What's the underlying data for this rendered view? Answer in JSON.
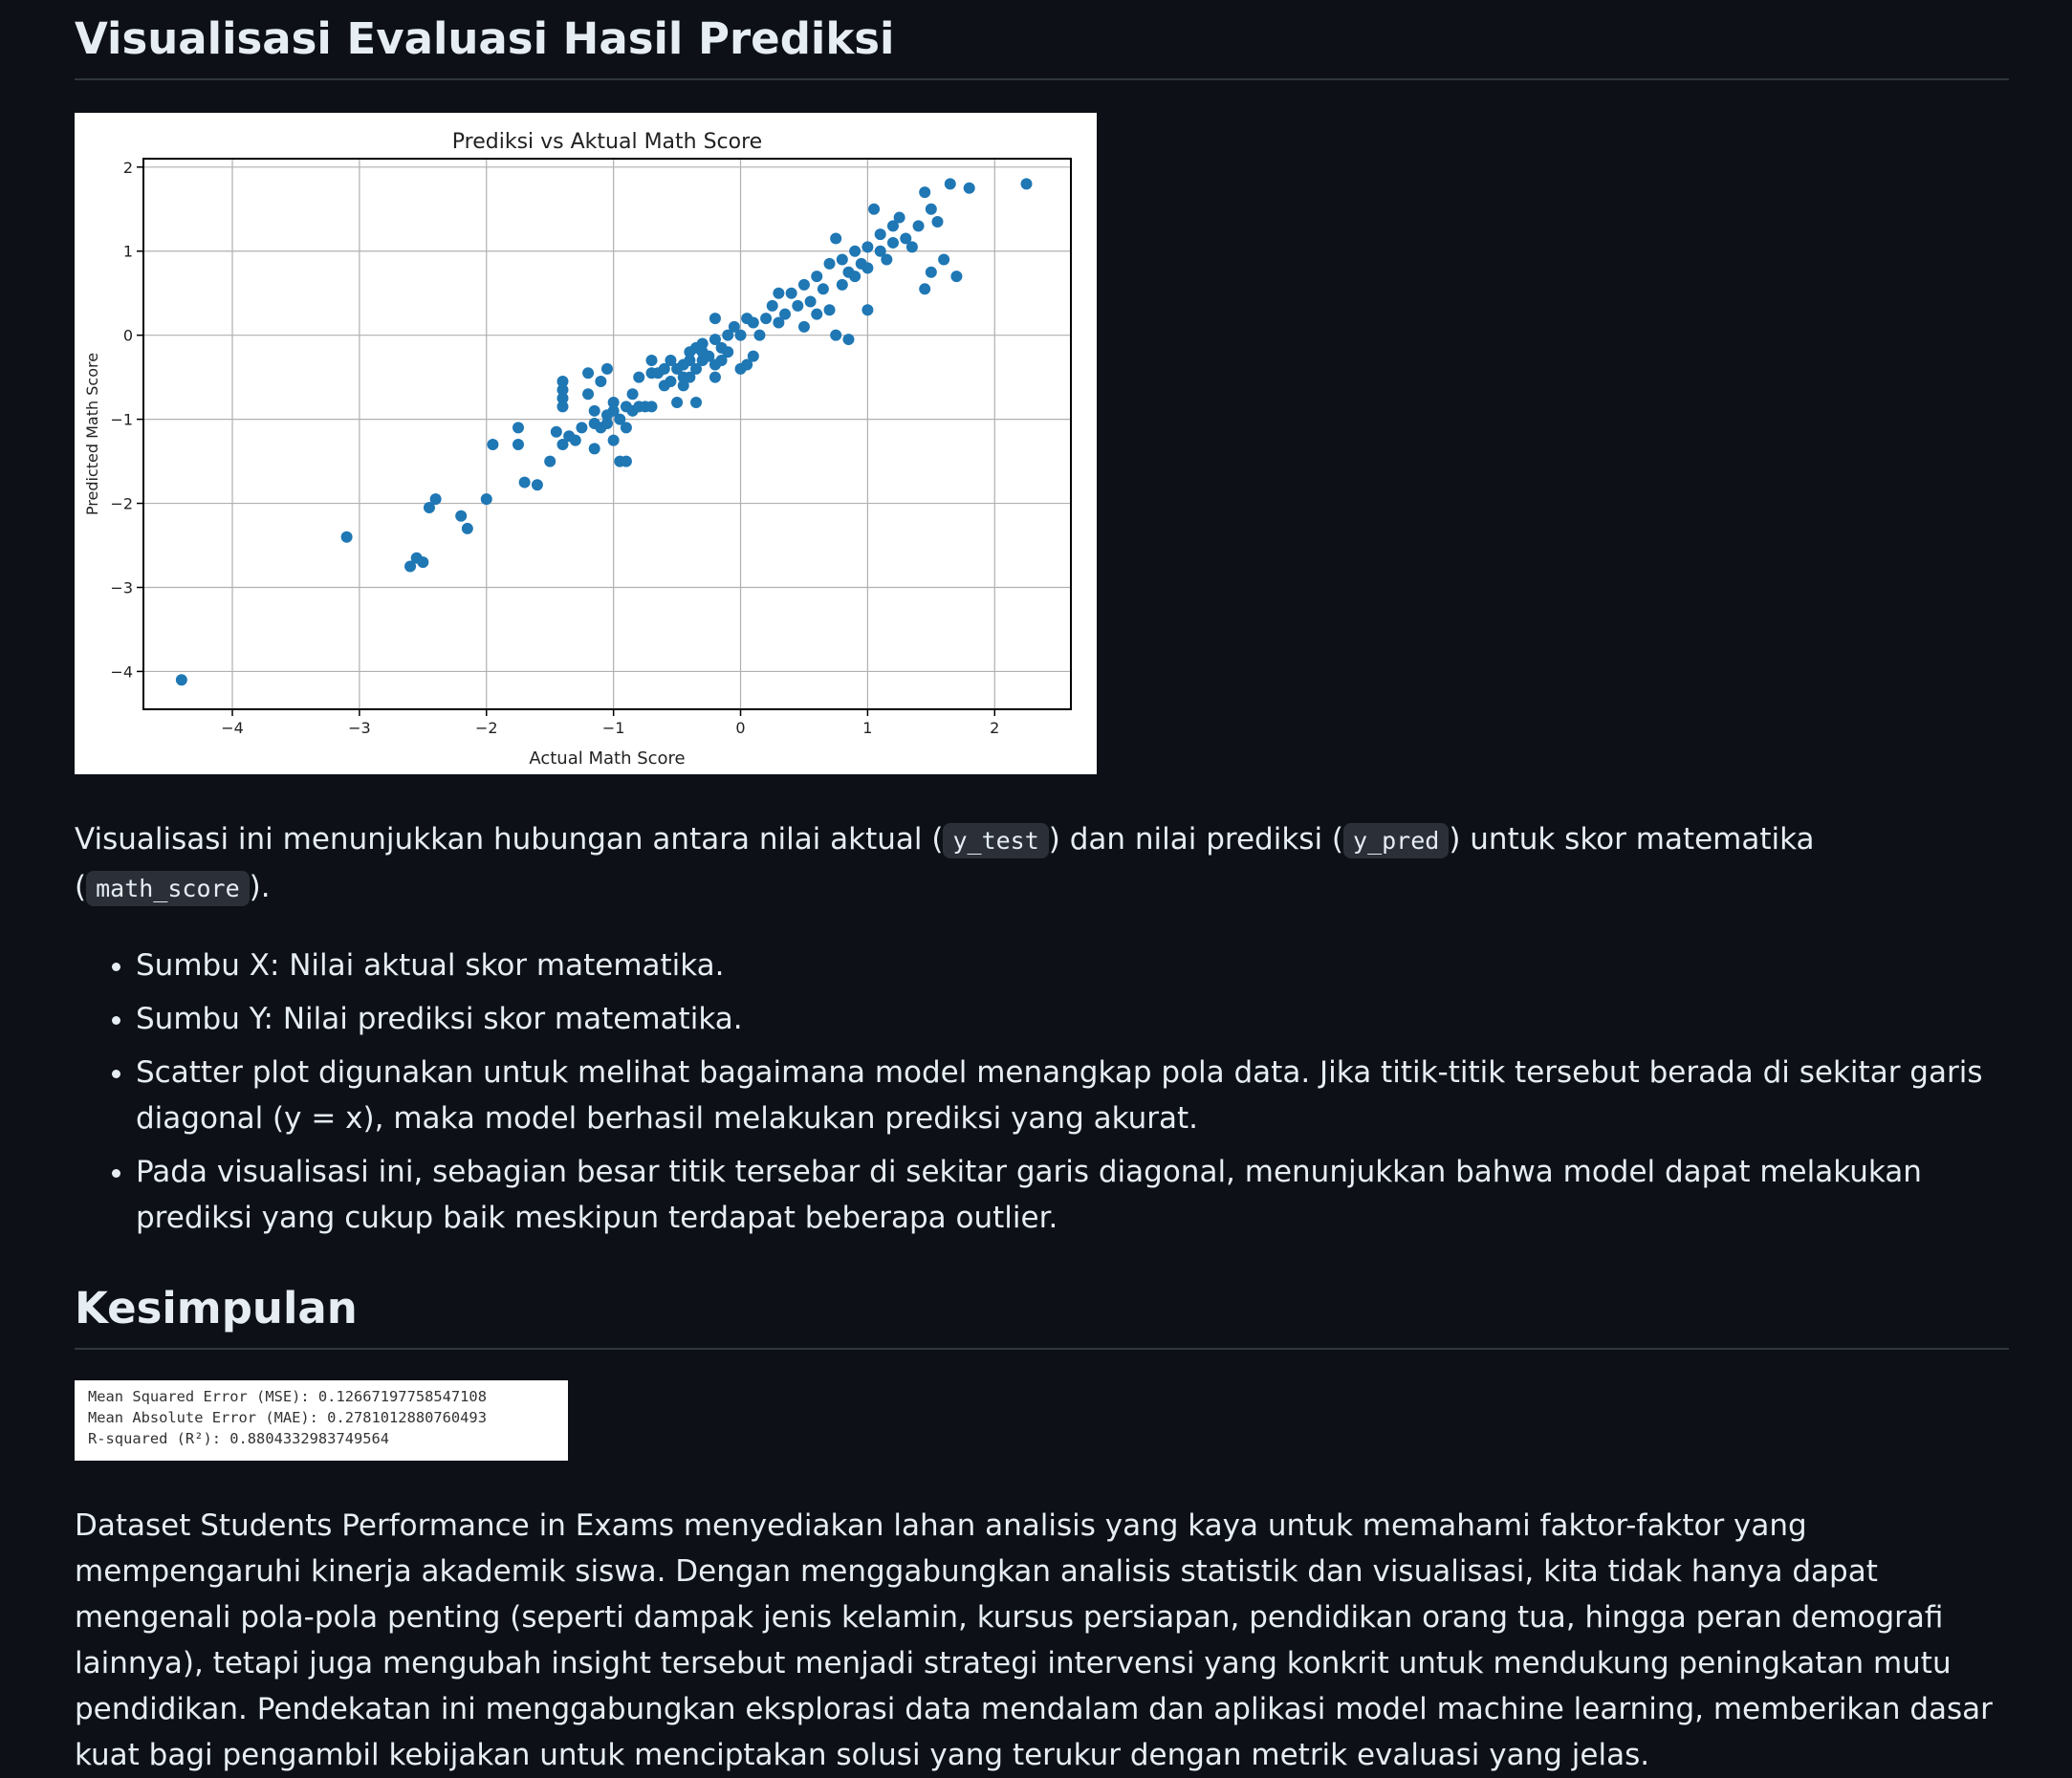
{
  "section1": {
    "heading": "Visualisasi Evaluasi Hasil Prediksi",
    "desc_parts": [
      "Visualisasi ini menunjukkan hubungan antara nilai aktual (",
      "y_test",
      ") dan nilai prediksi (",
      "y_pred",
      ") untuk skor matematika (",
      "math_score",
      ")."
    ],
    "bullets": [
      "Sumbu X: Nilai aktual skor matematika.",
      "Sumbu Y: Nilai prediksi skor matematika.",
      "Scatter plot digunakan untuk melihat bagaimana model menangkap pola data. Jika titik-titik tersebut berada di sekitar garis diagonal (y = x), maka model berhasil melakukan prediksi yang akurat.",
      "Pada visualisasi ini, sebagian besar titik tersebar di sekitar garis diagonal, menunjukkan bahwa model dapat melakukan prediksi yang cukup baik meskipun terdapat beberapa outlier."
    ]
  },
  "section2": {
    "heading": "Kesimpulan",
    "metrics": [
      "Mean Squared Error (MSE): 0.12667197758547108",
      "Mean Absolute Error (MAE): 0.2781012880760493",
      "R-squared (R²): 0.8804332983749564"
    ],
    "paragraph": "Dataset Students Performance in Exams menyediakan lahan analisis yang kaya untuk memahami faktor-faktor yang mempengaruhi kinerja akademik siswa. Dengan menggabungkan analisis statistik dan visualisasi, kita tidak hanya dapat mengenali pola-pola penting (seperti dampak jenis kelamin, kursus persiapan, pendidikan orang tua, hingga peran demografi lainnya), tetapi juga mengubah insight tersebut menjadi strategi intervensi yang konkrit untuk mendukung peningkatan mutu pendidikan. Pendekatan ini menggabungkan eksplorasi data mendalam dan aplikasi model machine learning, memberikan dasar kuat bagi pengambil kebijakan untuk menciptakan solusi yang terukur dengan metrik evaluasi yang jelas."
  },
  "chart_data": {
    "type": "scatter",
    "title": "Prediksi vs Aktual Math Score",
    "xlabel": "Actual Math Score",
    "ylabel": "Predicted Math Score",
    "xlim": [
      -4.7,
      2.6
    ],
    "ylim": [
      -4.45,
      2.1
    ],
    "xticks": [
      -4,
      -3,
      -2,
      -1,
      0,
      1,
      2
    ],
    "yticks": [
      -4,
      -3,
      -2,
      -1,
      0,
      1,
      2
    ],
    "xtick_labels": [
      "−4",
      "−3",
      "−2",
      "−1",
      "0",
      "1",
      "2"
    ],
    "ytick_labels": [
      "−4",
      "−3",
      "−2",
      "−1",
      "0",
      "1",
      "2"
    ],
    "grid": true,
    "marker_color": "#1f77b4",
    "points": [
      [
        -4.4,
        -4.1
      ],
      [
        -3.1,
        -2.4
      ],
      [
        -2.6,
        -2.75
      ],
      [
        -2.55,
        -2.65
      ],
      [
        -2.5,
        -2.7
      ],
      [
        -2.45,
        -2.05
      ],
      [
        -2.4,
        -1.95
      ],
      [
        -2.2,
        -2.15
      ],
      [
        -2.15,
        -2.3
      ],
      [
        -2.0,
        -1.95
      ],
      [
        -1.95,
        -1.3
      ],
      [
        -1.75,
        -1.1
      ],
      [
        -1.75,
        -1.3
      ],
      [
        -1.7,
        -1.75
      ],
      [
        -1.6,
        -1.78
      ],
      [
        -1.5,
        -1.5
      ],
      [
        -1.45,
        -1.15
      ],
      [
        -1.4,
        -1.3
      ],
      [
        -1.4,
        -0.55
      ],
      [
        -1.4,
        -0.65
      ],
      [
        -1.4,
        -0.75
      ],
      [
        -1.4,
        -0.85
      ],
      [
        -1.35,
        -1.2
      ],
      [
        -1.3,
        -1.25
      ],
      [
        -1.25,
        -1.1
      ],
      [
        -1.2,
        -0.45
      ],
      [
        -1.2,
        -0.7
      ],
      [
        -1.15,
        -1.35
      ],
      [
        -1.15,
        -0.9
      ],
      [
        -1.15,
        -1.05
      ],
      [
        -1.1,
        -0.55
      ],
      [
        -1.1,
        -1.1
      ],
      [
        -1.05,
        -0.95
      ],
      [
        -1.05,
        -1.05
      ],
      [
        -1.05,
        -0.4
      ],
      [
        -1.0,
        -1.25
      ],
      [
        -1.0,
        -0.8
      ],
      [
        -1.0,
        -0.9
      ],
      [
        -0.95,
        -1.5
      ],
      [
        -0.95,
        -1.0
      ],
      [
        -0.9,
        -1.1
      ],
      [
        -0.9,
        -0.85
      ],
      [
        -0.9,
        -1.5
      ],
      [
        -0.85,
        -0.7
      ],
      [
        -0.85,
        -0.9
      ],
      [
        -0.8,
        -0.85
      ],
      [
        -0.8,
        -0.5
      ],
      [
        -0.75,
        -0.85
      ],
      [
        -0.7,
        -0.85
      ],
      [
        -0.7,
        -0.45
      ],
      [
        -0.7,
        -0.3
      ],
      [
        -0.65,
        -0.45
      ],
      [
        -0.6,
        -0.4
      ],
      [
        -0.6,
        -0.6
      ],
      [
        -0.55,
        -0.3
      ],
      [
        -0.55,
        -0.55
      ],
      [
        -0.5,
        -0.4
      ],
      [
        -0.5,
        -0.8
      ],
      [
        -0.45,
        -0.35
      ],
      [
        -0.45,
        -0.6
      ],
      [
        -0.45,
        -0.5
      ],
      [
        -0.4,
        -0.2
      ],
      [
        -0.4,
        -0.3
      ],
      [
        -0.4,
        -0.5
      ],
      [
        -0.35,
        -0.15
      ],
      [
        -0.35,
        -0.4
      ],
      [
        -0.35,
        -0.8
      ],
      [
        -0.3,
        -0.1
      ],
      [
        -0.3,
        -0.3
      ],
      [
        -0.3,
        -0.2
      ],
      [
        -0.25,
        -0.25
      ],
      [
        -0.2,
        -0.05
      ],
      [
        -0.2,
        -0.5
      ],
      [
        -0.2,
        -0.35
      ],
      [
        -0.2,
        0.2
      ],
      [
        -0.15,
        -0.15
      ],
      [
        -0.15,
        -0.3
      ],
      [
        -0.1,
        0.0
      ],
      [
        -0.1,
        -0.2
      ],
      [
        -0.05,
        0.1
      ],
      [
        0.0,
        0.0
      ],
      [
        0.0,
        -0.4
      ],
      [
        0.05,
        -0.35
      ],
      [
        0.05,
        0.2
      ],
      [
        0.1,
        0.15
      ],
      [
        0.1,
        -0.25
      ],
      [
        0.15,
        0.0
      ],
      [
        0.2,
        0.2
      ],
      [
        0.25,
        0.35
      ],
      [
        0.3,
        0.15
      ],
      [
        0.3,
        0.5
      ],
      [
        0.35,
        0.25
      ],
      [
        0.4,
        0.5
      ],
      [
        0.45,
        0.35
      ],
      [
        0.5,
        0.1
      ],
      [
        0.5,
        0.6
      ],
      [
        0.55,
        0.4
      ],
      [
        0.6,
        0.25
      ],
      [
        0.6,
        0.7
      ],
      [
        0.65,
        0.55
      ],
      [
        0.7,
        0.3
      ],
      [
        0.7,
        0.85
      ],
      [
        0.75,
        0.0
      ],
      [
        0.75,
        1.15
      ],
      [
        0.8,
        0.6
      ],
      [
        0.8,
        0.9
      ],
      [
        0.85,
        0.75
      ],
      [
        0.85,
        -0.05
      ],
      [
        0.9,
        1.0
      ],
      [
        0.9,
        0.7
      ],
      [
        0.95,
        0.85
      ],
      [
        1.0,
        0.3
      ],
      [
        1.0,
        1.05
      ],
      [
        1.0,
        0.8
      ],
      [
        1.05,
        1.5
      ],
      [
        1.1,
        1.0
      ],
      [
        1.1,
        1.2
      ],
      [
        1.15,
        0.9
      ],
      [
        1.2,
        1.3
      ],
      [
        1.2,
        1.1
      ],
      [
        1.25,
        1.4
      ],
      [
        1.3,
        1.15
      ],
      [
        1.35,
        1.05
      ],
      [
        1.4,
        1.3
      ],
      [
        1.45,
        0.55
      ],
      [
        1.45,
        1.7
      ],
      [
        1.5,
        0.75
      ],
      [
        1.5,
        1.5
      ],
      [
        1.55,
        1.35
      ],
      [
        1.6,
        0.9
      ],
      [
        1.65,
        1.8
      ],
      [
        1.7,
        0.7
      ],
      [
        1.8,
        1.75
      ],
      [
        2.25,
        1.8
      ]
    ]
  }
}
